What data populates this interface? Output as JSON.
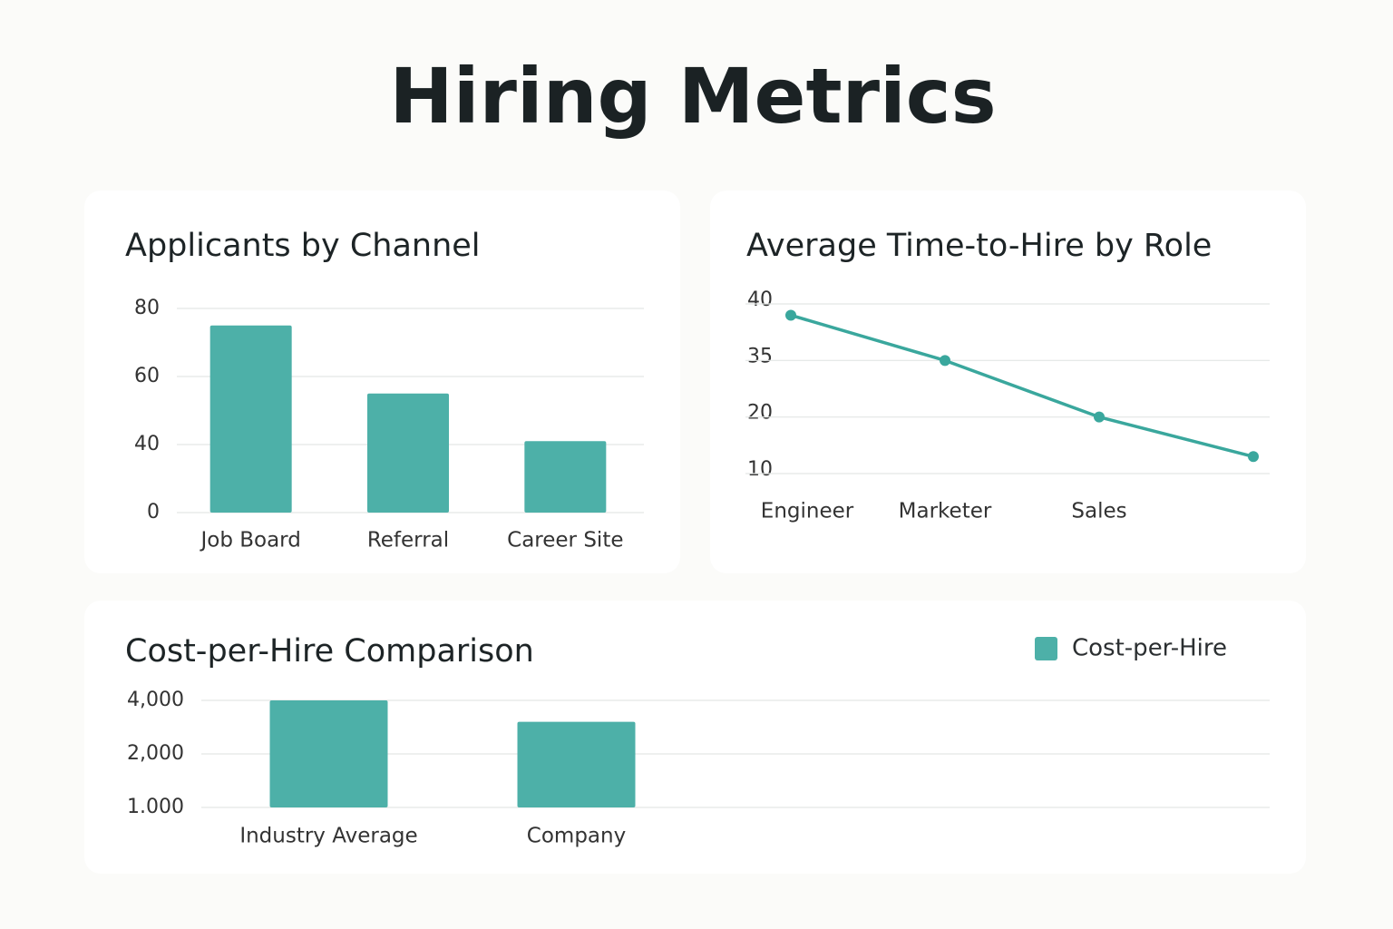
{
  "title": "Hiring Metrics",
  "chart_data": [
    {
      "type": "bar",
      "title": "Applicants by Channel",
      "categories": [
        "Job Board",
        "Referral",
        "Career Site"
      ],
      "values": [
        75,
        55,
        41
      ],
      "color": "#4db0a8",
      "ylim": [
        0,
        80
      ],
      "yticks": [
        0,
        40,
        60,
        80
      ],
      "grid": true
    },
    {
      "type": "line",
      "title": "Average Time-to-Hire by Role",
      "categories": [
        "Engineer",
        "Marketer",
        "Sales",
        null
      ],
      "values": [
        39,
        35,
        20,
        13
      ],
      "color": "#3aa79d",
      "ylim": [
        10,
        40
      ],
      "yticks": [
        10,
        20,
        35,
        40
      ],
      "grid": true
    },
    {
      "type": "bar",
      "title": "Cost-per-Hire Comparison",
      "categories": [
        "Industry Average",
        "Company"
      ],
      "series": [
        {
          "name": "Cost-per-Hire",
          "color": "#4db0a8",
          "values": [
            4000,
            3200
          ]
        }
      ],
      "ylim": [
        1000,
        4000
      ],
      "yticks": [
        {
          "value": 1000,
          "label": "1.000"
        },
        {
          "value": 2000,
          "label": "2,000"
        },
        {
          "value": 4000,
          "label": "4,000"
        }
      ],
      "grid": true,
      "legend": "top-right"
    }
  ]
}
